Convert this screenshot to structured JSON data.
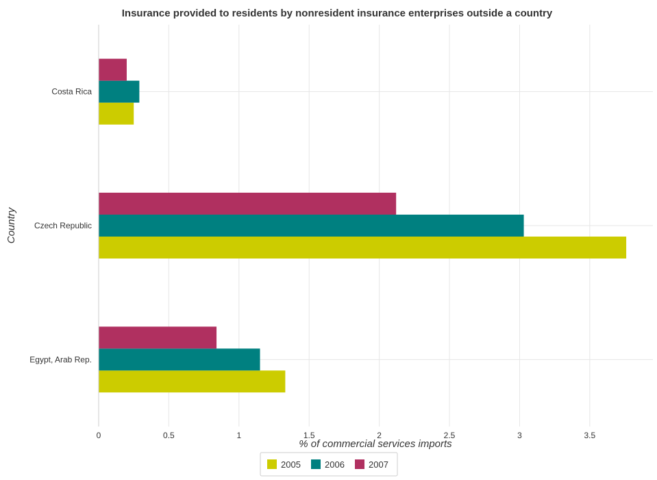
{
  "chart_data": {
    "type": "bar",
    "orientation": "horizontal",
    "title": "Insurance provided to residents by nonresident insurance enterprises outside a country",
    "xlabel": "% of commercial services imports",
    "ylabel": "Country",
    "categories": [
      "Costa Rica",
      "Czech Republic",
      "Egypt, Arab Rep."
    ],
    "series": [
      {
        "name": "2005",
        "color": "#cccc00",
        "values": [
          0.25,
          3.76,
          1.33
        ]
      },
      {
        "name": "2006",
        "color": "#008080",
        "values": [
          0.29,
          3.03,
          1.15
        ]
      },
      {
        "name": "2007",
        "color": "#b03060",
        "values": [
          0.2,
          2.12,
          0.84
        ]
      }
    ],
    "xlim": [
      0,
      3.95
    ],
    "xticks": [
      0,
      0.5,
      1,
      1.5,
      2,
      2.5,
      3,
      3.5
    ],
    "xtick_labels": [
      "0",
      "0.5",
      "1",
      "1.5",
      "2",
      "2.5",
      "3",
      "3.5"
    ],
    "grid": true,
    "legend_position": "bottom-center"
  }
}
